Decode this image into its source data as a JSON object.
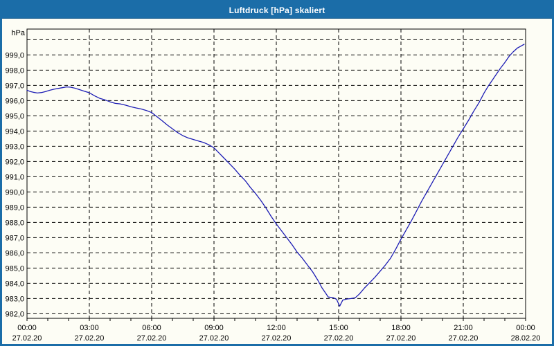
{
  "window": {
    "title": "Luftdruck [hPa] skaliert"
  },
  "chart_data": {
    "type": "line",
    "title": "Luftdruck [hPa] skaliert",
    "series_name": "Luftdruck",
    "unit_label": "hPa",
    "line_color": "#1c1cb4",
    "grid": "dashed",
    "legend_position": "none",
    "x_range_hours": [
      0,
      24
    ],
    "ylim": [
      981.7,
      1000.7
    ],
    "y_ticks": {
      "values": [
        1000,
        999,
        998,
        997,
        996,
        995,
        994,
        993,
        992,
        991,
        990,
        989,
        988,
        987,
        986,
        985,
        984,
        983,
        982
      ],
      "labels": [
        "",
        "999,0",
        "998,0",
        "997,0",
        "996,0",
        "995,0",
        "994,0",
        "993,0",
        "992,0",
        "991,0",
        "990,0",
        "989,0",
        "988,0",
        "987,0",
        "986,0",
        "985,0",
        "984,0",
        "983,0",
        "982,0"
      ]
    },
    "x_ticks": [
      {
        "hour": 0,
        "time": "00:00",
        "date": "27.02.20"
      },
      {
        "hour": 3,
        "time": "03:00",
        "date": "27.02.20"
      },
      {
        "hour": 6,
        "time": "06:00",
        "date": "27.02.20"
      },
      {
        "hour": 9,
        "time": "09:00",
        "date": "27.02.20"
      },
      {
        "hour": 12,
        "time": "12:00",
        "date": "27.02.20"
      },
      {
        "hour": 15,
        "time": "15:00",
        "date": "27.02.20"
      },
      {
        "hour": 18,
        "time": "18:00",
        "date": "27.02.20"
      },
      {
        "hour": 21,
        "time": "21:00",
        "date": "27.02.20"
      },
      {
        "hour": 24,
        "time": "00:00",
        "date": "28.02.20"
      }
    ],
    "minor_tick_every_hours": 1,
    "points": [
      [
        0.0,
        996.68
      ],
      [
        0.15,
        996.6
      ],
      [
        0.3,
        996.55
      ],
      [
        0.5,
        996.5
      ],
      [
        0.7,
        996.53
      ],
      [
        0.9,
        996.6
      ],
      [
        1.1,
        996.68
      ],
      [
        1.3,
        996.75
      ],
      [
        1.5,
        996.8
      ],
      [
        1.7,
        996.85
      ],
      [
        1.9,
        996.9
      ],
      [
        2.1,
        996.88
      ],
      [
        2.3,
        996.82
      ],
      [
        2.5,
        996.73
      ],
      [
        2.75,
        996.62
      ],
      [
        3.0,
        996.52
      ],
      [
        3.25,
        996.32
      ],
      [
        3.5,
        996.15
      ],
      [
        3.75,
        996.05
      ],
      [
        4.0,
        995.92
      ],
      [
        4.25,
        995.82
      ],
      [
        4.5,
        995.78
      ],
      [
        4.75,
        995.7
      ],
      [
        5.0,
        995.6
      ],
      [
        5.25,
        995.52
      ],
      [
        5.5,
        995.45
      ],
      [
        5.75,
        995.35
      ],
      [
        6.0,
        995.22
      ],
      [
        6.25,
        994.95
      ],
      [
        6.5,
        994.68
      ],
      [
        6.75,
        994.4
      ],
      [
        7.0,
        994.15
      ],
      [
        7.25,
        993.9
      ],
      [
        7.5,
        993.7
      ],
      [
        7.75,
        993.55
      ],
      [
        8.0,
        993.45
      ],
      [
        8.25,
        993.35
      ],
      [
        8.5,
        993.25
      ],
      [
        8.75,
        993.1
      ],
      [
        9.0,
        992.9
      ],
      [
        9.25,
        992.55
      ],
      [
        9.5,
        992.2
      ],
      [
        9.75,
        991.85
      ],
      [
        10.0,
        991.5
      ],
      [
        10.25,
        991.1
      ],
      [
        10.5,
        990.75
      ],
      [
        10.75,
        990.3
      ],
      [
        11.0,
        989.9
      ],
      [
        11.25,
        989.45
      ],
      [
        11.5,
        988.95
      ],
      [
        11.75,
        988.4
      ],
      [
        12.0,
        987.9
      ],
      [
        12.25,
        987.45
      ],
      [
        12.5,
        987.0
      ],
      [
        12.75,
        986.55
      ],
      [
        13.0,
        986.05
      ],
      [
        13.25,
        985.65
      ],
      [
        13.5,
        985.2
      ],
      [
        13.75,
        984.75
      ],
      [
        14.0,
        984.2
      ],
      [
        14.2,
        983.7
      ],
      [
        14.4,
        983.3
      ],
      [
        14.5,
        983.1
      ],
      [
        14.75,
        983.05
      ],
      [
        14.9,
        982.95
      ],
      [
        15.05,
        982.5
      ],
      [
        15.2,
        982.9
      ],
      [
        15.4,
        982.97
      ],
      [
        15.6,
        983.0
      ],
      [
        15.8,
        983.05
      ],
      [
        16.0,
        983.3
      ],
      [
        16.25,
        983.7
      ],
      [
        16.5,
        984.05
      ],
      [
        16.75,
        984.4
      ],
      [
        17.0,
        984.8
      ],
      [
        17.25,
        985.2
      ],
      [
        17.5,
        985.65
      ],
      [
        17.75,
        986.25
      ],
      [
        18.0,
        986.9
      ],
      [
        18.25,
        987.5
      ],
      [
        18.5,
        988.1
      ],
      [
        18.75,
        988.75
      ],
      [
        19.0,
        989.4
      ],
      [
        19.25,
        990.0
      ],
      [
        19.5,
        990.6
      ],
      [
        19.75,
        991.2
      ],
      [
        20.0,
        991.8
      ],
      [
        20.25,
        992.4
      ],
      [
        20.5,
        993.0
      ],
      [
        20.75,
        993.6
      ],
      [
        21.0,
        994.15
      ],
      [
        21.25,
        994.7
      ],
      [
        21.5,
        995.3
      ],
      [
        21.75,
        995.85
      ],
      [
        22.0,
        996.5
      ],
      [
        22.2,
        996.95
      ],
      [
        22.4,
        997.35
      ],
      [
        22.6,
        997.75
      ],
      [
        22.8,
        998.15
      ],
      [
        23.0,
        998.5
      ],
      [
        23.2,
        998.9
      ],
      [
        23.4,
        999.2
      ],
      [
        23.6,
        999.45
      ],
      [
        23.8,
        999.6
      ],
      [
        23.93,
        999.7
      ]
    ]
  }
}
